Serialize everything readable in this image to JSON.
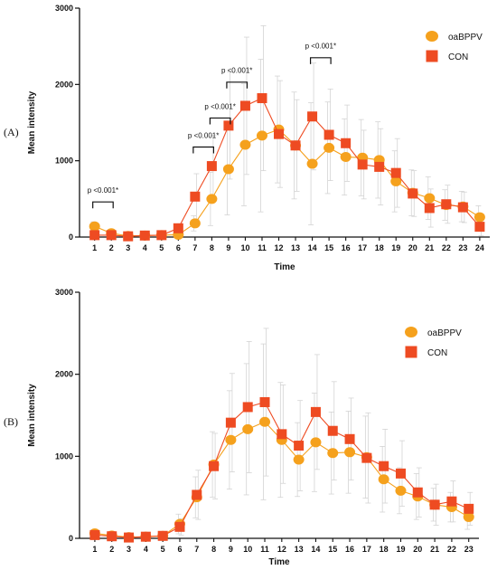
{
  "colors": {
    "oaBPPV": "#F5A11D",
    "CON": "#EE4B22",
    "error": "#D4D4D4",
    "axis": "#111111"
  },
  "chart_data": [
    {
      "type": "line",
      "panel_label": "(A)",
      "xlabel": "Time",
      "ylabel": "Mean intensity",
      "ylim": [
        0,
        3000
      ],
      "yticks": [
        0,
        1000,
        2000,
        3000
      ],
      "x": [
        1,
        2,
        3,
        4,
        5,
        6,
        7,
        8,
        9,
        10,
        11,
        12,
        13,
        14,
        15,
        16,
        17,
        18,
        19,
        20,
        21,
        22,
        23,
        24
      ],
      "series": [
        {
          "name": "oaBPPV",
          "marker": "circle",
          "color": "#F5A11D",
          "values": [
            140,
            50,
            15,
            20,
            25,
            30,
            180,
            500,
            890,
            1210,
            1330,
            1410,
            1200,
            960,
            1170,
            1050,
            1040,
            1010,
            730,
            580,
            510,
            420,
            400,
            260
          ],
          "error": [
            60,
            40,
            20,
            20,
            20,
            20,
            100,
            350,
            600,
            800,
            1000,
            700,
            700,
            800,
            600,
            500,
            500,
            500,
            400,
            300,
            280,
            200,
            200,
            150
          ]
        },
        {
          "name": "CON",
          "marker": "square",
          "color": "#EE4B22",
          "values": [
            25,
            25,
            10,
            20,
            25,
            115,
            530,
            930,
            1460,
            1720,
            1820,
            1350,
            1200,
            1580,
            1340,
            1230,
            950,
            920,
            840,
            570,
            380,
            430,
            390,
            135
          ],
          "error": [
            20,
            20,
            10,
            20,
            20,
            60,
            300,
            400,
            700,
            900,
            950,
            700,
            600,
            700,
            600,
            500,
            450,
            500,
            450,
            300,
            250,
            250,
            200,
            120
          ]
        }
      ],
      "annotations": [
        {
          "text": "p <0.001*",
          "x1": 1,
          "x2": 2,
          "y": 460,
          "y_text": 580
        },
        {
          "text": "p <0.001*",
          "x1": 7,
          "x2": 8,
          "y": 1180,
          "y_text": 1300
        },
        {
          "text": "p <0.001*",
          "x1": 8,
          "x2": 9,
          "y": 1560,
          "y_text": 1680
        },
        {
          "text": "p <0.001*",
          "x1": 9,
          "x2": 10,
          "y": 2030,
          "y_text": 2150
        },
        {
          "text": "p <0.001*",
          "x1": 14,
          "x2": 15,
          "y": 2350,
          "y_text": 2470
        }
      ],
      "legend": {
        "placement": "top-right",
        "entries": [
          "oaBPPV",
          "CON"
        ]
      }
    },
    {
      "type": "line",
      "panel_label": "(B)",
      "xlabel": "Time",
      "ylabel": "Mean intensity",
      "ylim": [
        0,
        3000
      ],
      "yticks": [
        0,
        1000,
        2000,
        3000
      ],
      "x": [
        1,
        2,
        3,
        4,
        5,
        6,
        7,
        8,
        9,
        10,
        11,
        12,
        13,
        14,
        15,
        16,
        17,
        18,
        19,
        20,
        21,
        22,
        23
      ],
      "series": [
        {
          "name": "oaBPPV",
          "marker": "circle",
          "color": "#F5A11D",
          "values": [
            60,
            35,
            15,
            20,
            30,
            175,
            500,
            900,
            1200,
            1330,
            1420,
            1200,
            960,
            1170,
            1040,
            1050,
            990,
            720,
            580,
            510,
            410,
            380,
            260
          ],
          "error": [
            40,
            30,
            20,
            20,
            20,
            120,
            250,
            400,
            600,
            800,
            950,
            700,
            450,
            600,
            500,
            500,
            500,
            400,
            280,
            280,
            200,
            180,
            150
          ]
        },
        {
          "name": "CON",
          "marker": "square",
          "color": "#EE4B22",
          "values": [
            40,
            25,
            10,
            20,
            30,
            140,
            530,
            880,
            1410,
            1600,
            1660,
            1270,
            1130,
            1540,
            1310,
            1210,
            980,
            880,
            790,
            560,
            410,
            450,
            360
          ],
          "error": [
            30,
            20,
            10,
            20,
            20,
            100,
            300,
            400,
            600,
            800,
            900,
            600,
            550,
            700,
            600,
            500,
            550,
            450,
            400,
            300,
            250,
            250,
            200
          ]
        }
      ],
      "legend": {
        "placement": "top-right",
        "entries": [
          "oaBPPV",
          "CON"
        ]
      }
    }
  ]
}
